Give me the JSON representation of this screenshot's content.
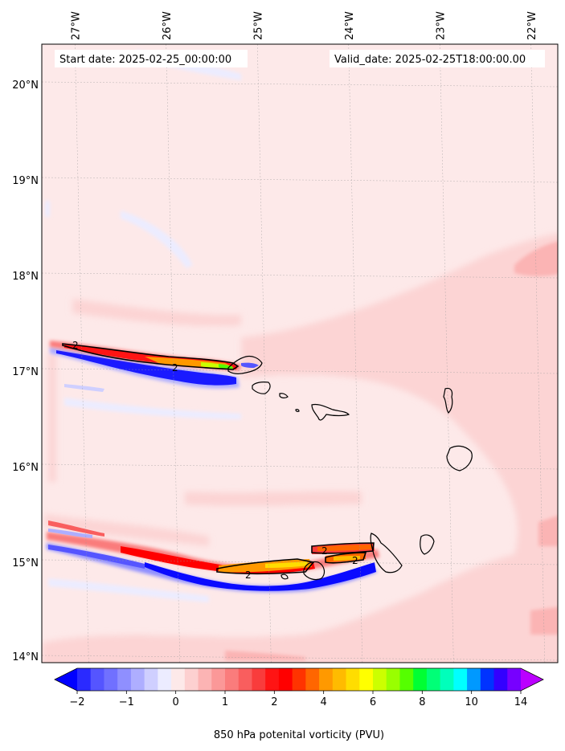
{
  "figure": {
    "start_date": "Start date: 2025-02-25_00:00:00",
    "valid_date": "Valid_date: 2025-02-25T18:00:00.00",
    "variable_label": "850 hPa potenital vorticity (PVU)"
  },
  "map": {
    "lon_ticks": [
      "27°W",
      "26°W",
      "25°W",
      "24°W",
      "23°W",
      "22°W"
    ],
    "lat_ticks": [
      "20°N",
      "19°N",
      "18°N",
      "17°N",
      "16°N",
      "15°N",
      "14°N"
    ],
    "lon_values": [
      -27,
      -26,
      -25,
      -24,
      -23,
      -22
    ],
    "lat_values": [
      20,
      19,
      18,
      17,
      16,
      15,
      14
    ],
    "contour_label": "2",
    "background_color": "#fde9e9"
  },
  "colorbar": {
    "tick_labels": [
      "−2",
      "−1",
      "0",
      "1",
      "2",
      "4",
      "6",
      "8",
      "10",
      "14"
    ],
    "colors": [
      "#0000ff",
      "#2a2aff",
      "#5555ff",
      "#7070ff",
      "#8f8fff",
      "#aeaeff",
      "#cfcfff",
      "#ececff",
      "#fde9e9",
      "#fdd0d0",
      "#fcb4b4",
      "#fb9898",
      "#fa7c7c",
      "#f95e5e",
      "#f93c3c",
      "#ff1414",
      "#ff0000",
      "#ff3300",
      "#ff6600",
      "#ff9900",
      "#ffbb00",
      "#ffdd00",
      "#ffff00",
      "#ccff00",
      "#99ff00",
      "#55ff00",
      "#00ff33",
      "#00ff77",
      "#00ffbb",
      "#00ffff",
      "#0099ff",
      "#0033ff",
      "#3300ff",
      "#7700ff",
      "#bb00ff"
    ]
  }
}
